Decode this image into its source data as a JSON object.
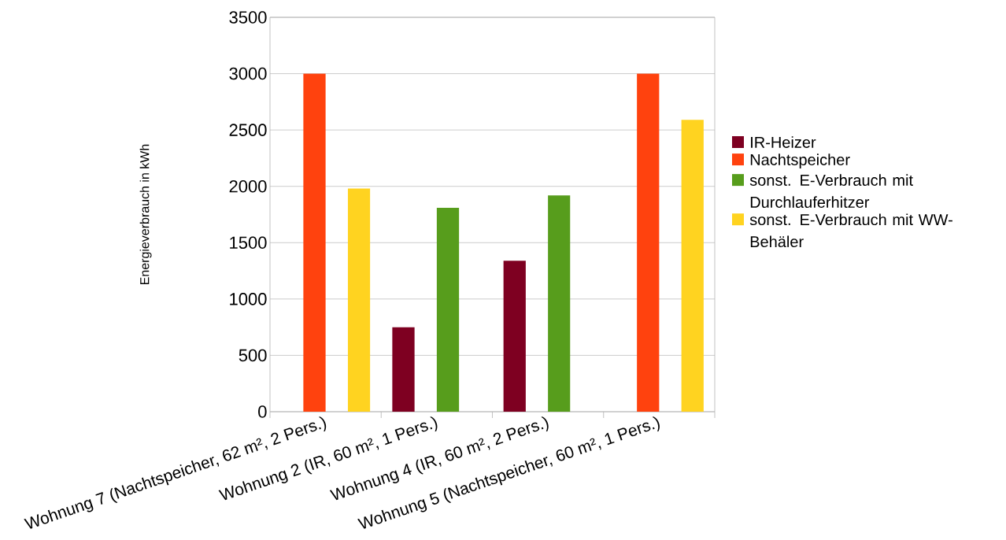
{
  "chart_data": {
    "type": "bar",
    "ylabel": "Energieverbrauch in kWh",
    "categories": [
      "Wohnung 7 (Nachtspeicher, 62 m², 2 Pers.)",
      "Wohnung 2 (IR, 60 m², 1 Pers.)",
      "Wohnung 4 (IR, 60 m², 2 Pers.)",
      "Wohnung 5 (Nachtspeicher, 60 m², 1 Pers.)"
    ],
    "series": [
      {
        "name": "IR-Heizer",
        "color": "#7e0021",
        "values": [
          null,
          750,
          1340,
          null
        ]
      },
      {
        "name": "Nachtspeicher",
        "color": "#ff420e",
        "values": [
          3000,
          null,
          null,
          3000
        ]
      },
      {
        "name": "sonst. E-Verbrauch mit Durchlauferhitzer",
        "color": "#579d1c",
        "values": [
          null,
          1810,
          1920,
          null
        ]
      },
      {
        "name": "sonst. E-Verbrauch mit WW-Behäler",
        "color": "#ffd320",
        "values": [
          1980,
          null,
          null,
          2590
        ]
      }
    ],
    "ylim": [
      0,
      3500
    ],
    "yticks": [
      0,
      500,
      1000,
      1500,
      2000,
      2500,
      3000,
      3500
    ],
    "grid": "y",
    "legend": "right"
  }
}
